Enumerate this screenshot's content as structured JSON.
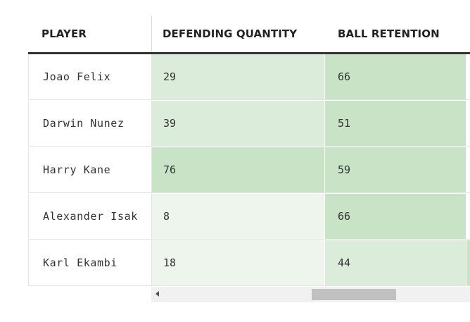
{
  "columns": {
    "player": "PLAYER",
    "defending_quantity": "DEFENDING QUANTITY",
    "ball_retention": "BALL RETENTION"
  },
  "rows": [
    {
      "player": "Joao Felix",
      "defending_quantity": "29",
      "ball_retention": "66"
    },
    {
      "player": "Darwin Nunez",
      "defending_quantity": "39",
      "ball_retention": "51"
    },
    {
      "player": "Harry Kane",
      "defending_quantity": "76",
      "ball_retention": "59"
    },
    {
      "player": "Alexander Isak",
      "defending_quantity": "8",
      "ball_retention": "66"
    },
    {
      "player": "Karl Ekambi",
      "defending_quantity": "18",
      "ball_retention": "44"
    }
  ],
  "colors": {
    "heat_low": "#edf5ec",
    "heat_mid": "#dcecda",
    "heat_high": "#c9e3c6",
    "header_rule": "#333333"
  },
  "cell_shades": [
    {
      "defending_quantity": "mid",
      "ball_retention": "high",
      "next": "#ffffff"
    },
    {
      "defending_quantity": "mid",
      "ball_retention": "high",
      "next": "#ffffff"
    },
    {
      "defending_quantity": "high",
      "ball_retention": "high",
      "next": "#ffffff"
    },
    {
      "defending_quantity": "low",
      "ball_retention": "high",
      "next": "#ffffff"
    },
    {
      "defending_quantity": "low",
      "ball_retention": "mid",
      "next": "#c9e3c6"
    }
  ],
  "scrollbar": {
    "left_arrow_icon": "left-arrow-icon"
  }
}
